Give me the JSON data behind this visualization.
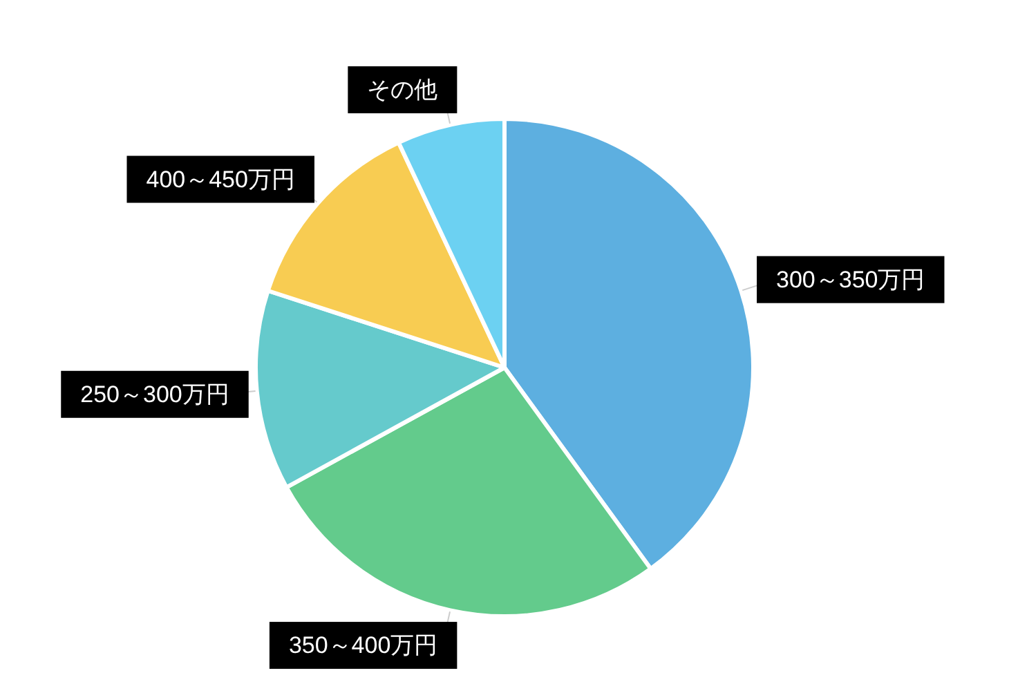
{
  "chart_data": {
    "type": "pie",
    "categories": [
      "300～350万円",
      "350～400万円",
      "250～300万円",
      "400～450万円",
      "その他"
    ],
    "values": [
      40,
      27,
      13,
      13,
      7
    ],
    "colors": [
      "#5dafe0",
      "#63cb8c",
      "#65cacc",
      "#f8cc52",
      "#6cd1f2"
    ]
  }
}
